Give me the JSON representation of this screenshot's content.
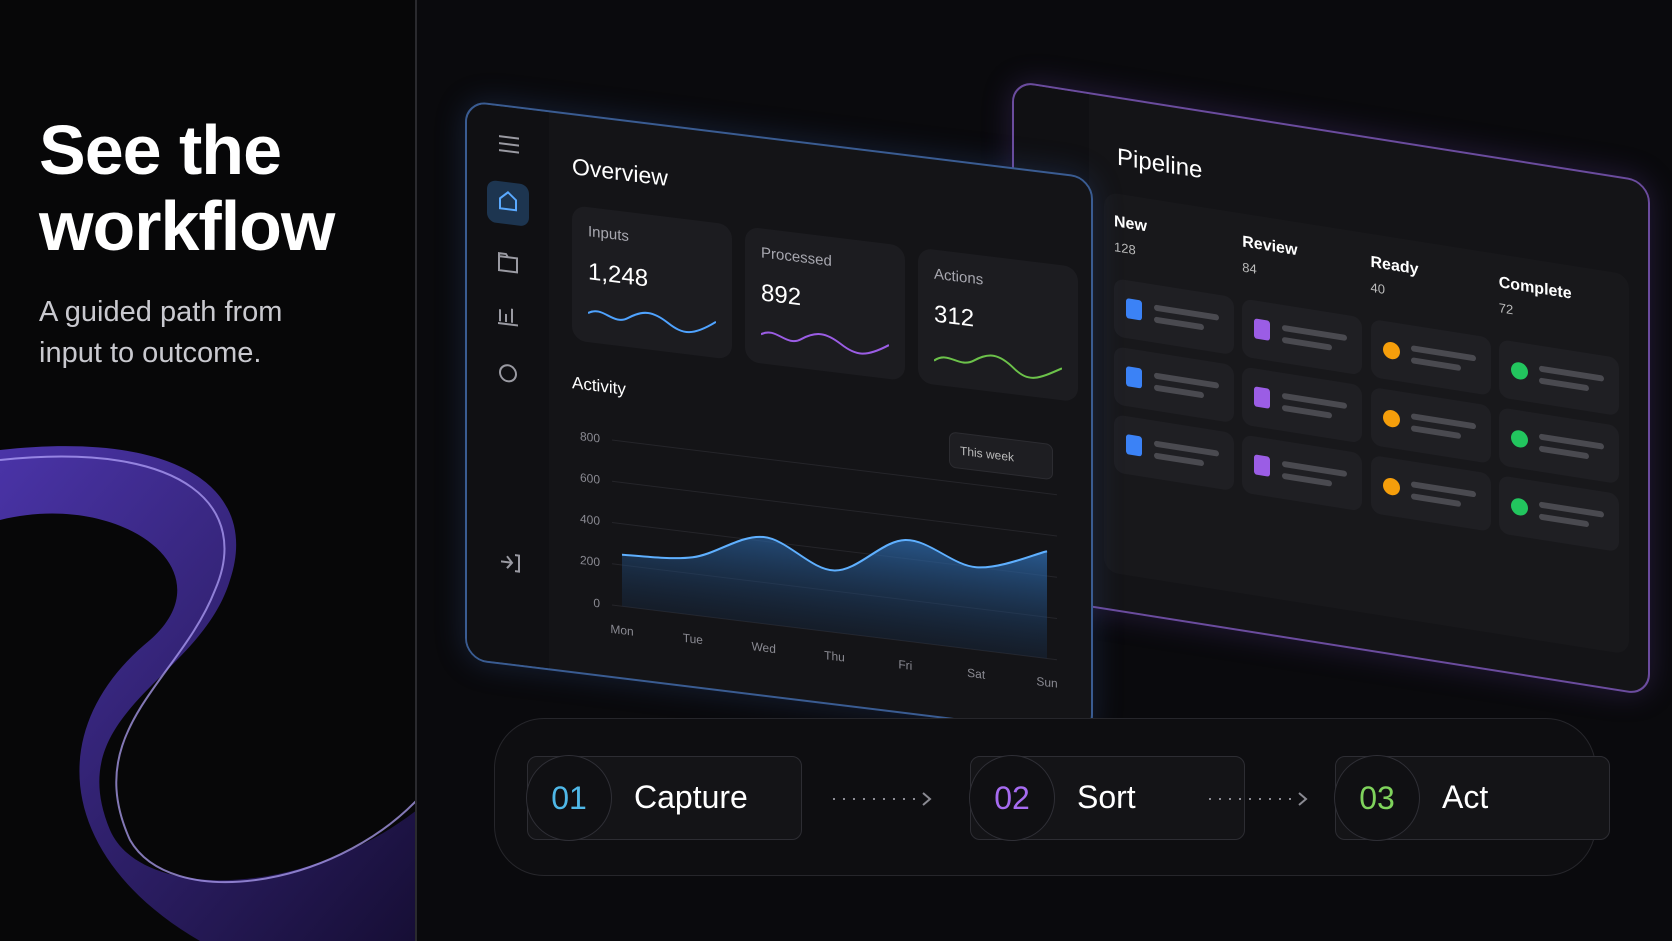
{
  "hero": {
    "title_line1": "See the",
    "title_line2": "workflow",
    "subtitle_line1": "A guided path from",
    "subtitle_line2": "input to outcome."
  },
  "overview": {
    "title": "Overview",
    "stats": [
      {
        "label": "Inputs",
        "value": "1,248"
      },
      {
        "label": "Processed",
        "value": "892"
      },
      {
        "label": "Actions",
        "value": "312"
      }
    ],
    "activity": {
      "title": "Activity",
      "range": "This week",
      "ylim": [
        0,
        800
      ],
      "yticks": [
        0,
        200,
        400,
        600,
        800
      ],
      "categories": [
        "Mon",
        "Tue",
        "Wed",
        "Thu",
        "Fri",
        "Sat",
        "Sun"
      ],
      "values": [
        250,
        280,
        420,
        300,
        490,
        400,
        520
      ]
    }
  },
  "pipeline": {
    "title": "Pipeline",
    "columns": [
      {
        "name": "New",
        "count": 128
      },
      {
        "name": "Review",
        "count": 84
      },
      {
        "name": "Ready",
        "count": 40
      },
      {
        "name": "Complete",
        "count": 72
      }
    ]
  },
  "steps": [
    {
      "number": "01",
      "label": "Capture"
    },
    {
      "number": "02",
      "label": "Sort"
    },
    {
      "number": "03",
      "label": "Act"
    }
  ]
}
